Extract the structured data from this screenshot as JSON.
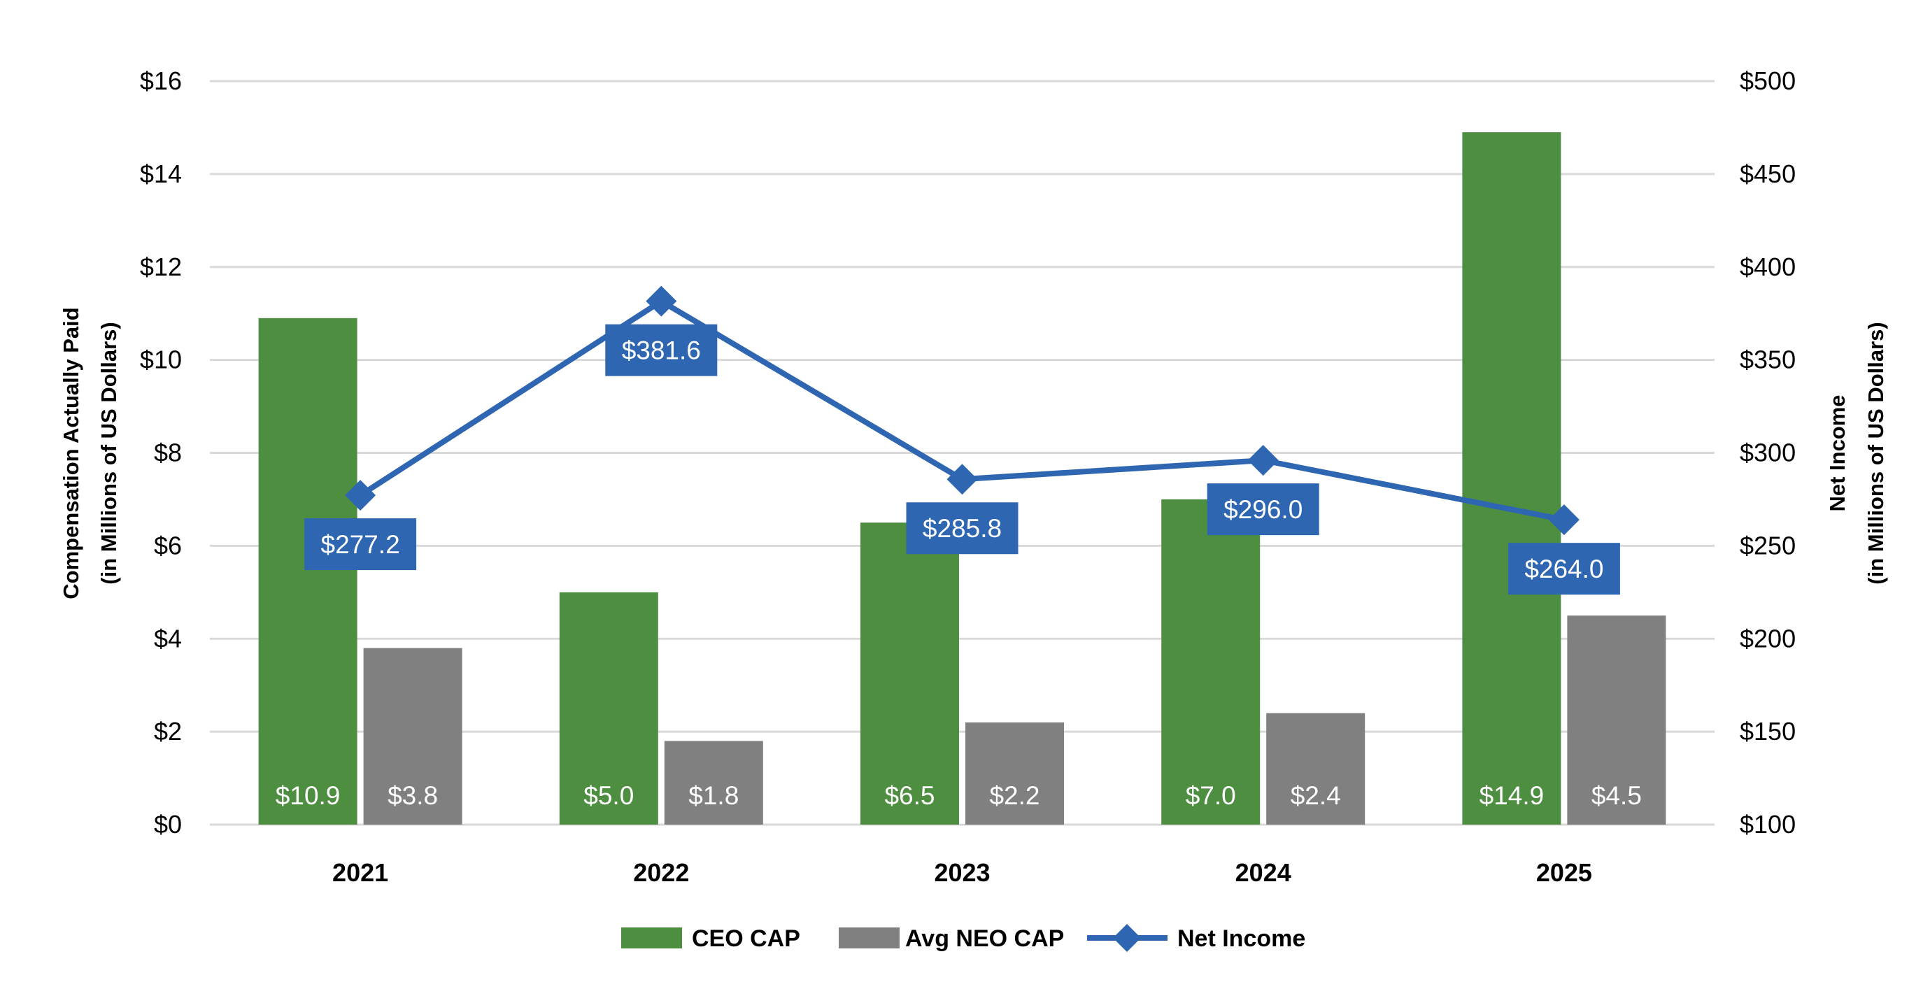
{
  "chart_data": {
    "type": "bar+line",
    "categories": [
      "2021",
      "2022",
      "2023",
      "2024",
      "2025"
    ],
    "series": [
      {
        "name": "CEO CAP",
        "type": "bar",
        "axis": "left",
        "color": "#4E8E41",
        "values": [
          10.9,
          5.0,
          6.5,
          7.0,
          14.9
        ],
        "labels": [
          "$10.9",
          "$5.0",
          "$6.5",
          "$7.0",
          "$14.9"
        ]
      },
      {
        "name": "Avg NEO CAP",
        "type": "bar",
        "axis": "left",
        "color": "#808080",
        "values": [
          3.8,
          1.8,
          2.2,
          2.4,
          4.5
        ],
        "labels": [
          "$3.8",
          "$1.8",
          "$2.2",
          "$2.4",
          "$4.5"
        ]
      },
      {
        "name": "Net Income",
        "type": "line",
        "axis": "right",
        "color": "#2E66B1",
        "marker": "diamond",
        "values": [
          277.2,
          381.6,
          285.8,
          296.0,
          264.0
        ],
        "labels": [
          "$277.2",
          "$381.6",
          "$285.8",
          "$296.0",
          "$264.0"
        ]
      }
    ],
    "ylabel": [
      "Compensation Actually Paid",
      "(in Millions of US Dollars)"
    ],
    "y2label": [
      "Net Income",
      "(in Millions of US Dollars)"
    ],
    "ylim": [
      0,
      16
    ],
    "y2lim": [
      100,
      500
    ],
    "yticks": [
      "$0",
      "$2",
      "$4",
      "$6",
      "$8",
      "$10",
      "$12",
      "$14",
      "$16"
    ],
    "y2ticks": [
      "$100",
      "$150",
      "$200",
      "$250",
      "$300",
      "$350",
      "$400",
      "$450",
      "$500"
    ],
    "grid": true,
    "legend": "bottom"
  }
}
